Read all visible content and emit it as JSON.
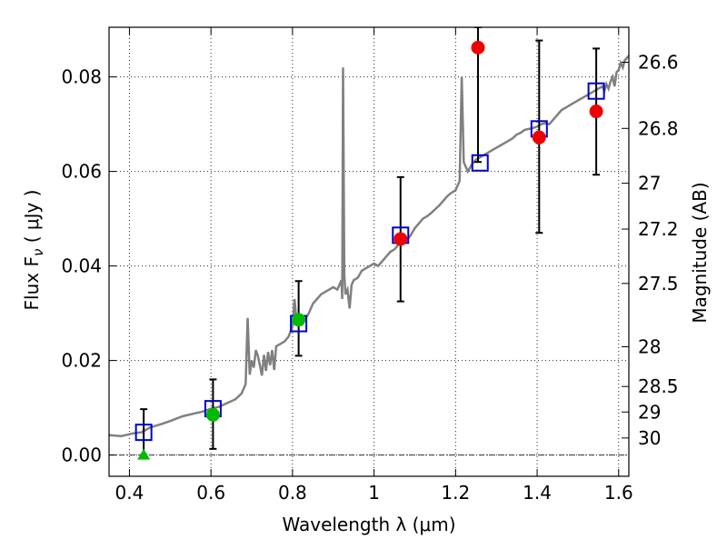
{
  "chart_data": {
    "type": "scatter",
    "xlabel": "Wavelength  λ (μm)",
    "ylabel": "Flux  F",
    "ylabel_sub": "ν",
    "ylabel_unit": "  ( μJy )",
    "y2label": "Magnitude (AB)",
    "xlim": [
      0.35,
      1.625
    ],
    "ylim": [
      -0.0045,
      0.0905
    ],
    "grid": true,
    "x_ticks": [
      0.4,
      0.6,
      0.8,
      1.0,
      1.2,
      1.4,
      1.6
    ],
    "x_tick_labels": [
      "0.4",
      "0.6",
      "0.8",
      "1",
      "1.2",
      "1.4",
      "1.6"
    ],
    "y_ticks": [
      0.0,
      0.02,
      0.04,
      0.06,
      0.08
    ],
    "y_tick_labels": [
      "0.00",
      "0.02",
      "0.04",
      "0.06",
      "0.08"
    ],
    "mag_ticks": [
      {
        "label": "26.6",
        "flux": 0.0831
      },
      {
        "label": "26.8",
        "flux": 0.0691
      },
      {
        "label": "27",
        "flux": 0.0575
      },
      {
        "label": "27.2",
        "flux": 0.0478
      },
      {
        "label": "27.5",
        "flux": 0.0363
      },
      {
        "label": "28",
        "flux": 0.0229
      },
      {
        "label": "28.5",
        "flux": 0.0145
      },
      {
        "label": "29",
        "flux": 0.0091
      },
      {
        "label": "30",
        "flux": 0.0036
      }
    ],
    "colors": {
      "model": "#808080",
      "model_photometry": "#0000cc",
      "detection_red": "#ee0000",
      "detection_green": "#00bb00",
      "errorbar": "#000000"
    },
    "series": [
      {
        "kind": "line",
        "points": [
          [
            0.35,
            0.0042
          ],
          [
            0.38,
            0.004
          ],
          [
            0.41,
            0.0046
          ],
          [
            0.43,
            0.0048
          ],
          [
            0.45,
            0.0058
          ],
          [
            0.48,
            0.0066
          ],
          [
            0.5,
            0.0072
          ],
          [
            0.53,
            0.0082
          ],
          [
            0.56,
            0.0088
          ],
          [
            0.58,
            0.0092
          ],
          [
            0.6,
            0.0098
          ],
          [
            0.62,
            0.0102
          ],
          [
            0.64,
            0.011
          ],
          [
            0.66,
            0.0118
          ],
          [
            0.675,
            0.013
          ],
          [
            0.685,
            0.015
          ],
          [
            0.69,
            0.029
          ],
          [
            0.695,
            0.017
          ],
          [
            0.7,
            0.02
          ],
          [
            0.705,
            0.0185
          ],
          [
            0.71,
            0.0222
          ],
          [
            0.715,
            0.021
          ],
          [
            0.72,
            0.019
          ],
          [
            0.725,
            0.0168
          ],
          [
            0.73,
            0.0212
          ],
          [
            0.735,
            0.0178
          ],
          [
            0.74,
            0.0218
          ],
          [
            0.745,
            0.019
          ],
          [
            0.75,
            0.0222
          ],
          [
            0.755,
            0.018
          ],
          [
            0.76,
            0.023
          ],
          [
            0.77,
            0.0235
          ],
          [
            0.78,
            0.024
          ],
          [
            0.79,
            0.025
          ],
          [
            0.8,
            0.0272
          ],
          [
            0.805,
            0.033
          ],
          [
            0.81,
            0.028
          ],
          [
            0.82,
            0.029
          ],
          [
            0.83,
            0.0285
          ],
          [
            0.84,
            0.03
          ],
          [
            0.85,
            0.032
          ],
          [
            0.86,
            0.033
          ],
          [
            0.87,
            0.034
          ],
          [
            0.88,
            0.0345
          ],
          [
            0.89,
            0.035
          ],
          [
            0.9,
            0.0355
          ],
          [
            0.91,
            0.035
          ],
          [
            0.915,
            0.036
          ],
          [
            0.92,
            0.037
          ],
          [
            0.922,
            0.033
          ],
          [
            0.924,
            0.082
          ],
          [
            0.927,
            0.038
          ],
          [
            0.93,
            0.034
          ],
          [
            0.935,
            0.035
          ],
          [
            0.94,
            0.031
          ],
          [
            0.945,
            0.036
          ],
          [
            0.95,
            0.037
          ],
          [
            0.96,
            0.0375
          ],
          [
            0.97,
            0.039
          ],
          [
            0.98,
            0.0395
          ],
          [
            0.99,
            0.04
          ],
          [
            1.0,
            0.0405
          ],
          [
            1.01,
            0.04
          ],
          [
            1.02,
            0.041
          ],
          [
            1.03,
            0.042
          ],
          [
            1.04,
            0.043
          ],
          [
            1.05,
            0.0435
          ],
          [
            1.06,
            0.0445
          ],
          [
            1.07,
            0.045
          ],
          [
            1.08,
            0.0455
          ],
          [
            1.09,
            0.0465
          ],
          [
            1.1,
            0.048
          ],
          [
            1.11,
            0.049
          ],
          [
            1.12,
            0.05
          ],
          [
            1.13,
            0.0505
          ],
          [
            1.14,
            0.0512
          ],
          [
            1.15,
            0.052
          ],
          [
            1.16,
            0.0528
          ],
          [
            1.17,
            0.0538
          ],
          [
            1.18,
            0.0548
          ],
          [
            1.19,
            0.0555
          ],
          [
            1.2,
            0.056
          ],
          [
            1.21,
            0.058
          ],
          [
            1.215,
            0.08
          ],
          [
            1.22,
            0.062
          ],
          [
            1.225,
            0.061
          ],
          [
            1.23,
            0.06
          ],
          [
            1.24,
            0.0615
          ],
          [
            1.25,
            0.0625
          ],
          [
            1.26,
            0.063
          ],
          [
            1.27,
            0.0635
          ],
          [
            1.28,
            0.064
          ],
          [
            1.29,
            0.0645
          ],
          [
            1.3,
            0.065
          ],
          [
            1.31,
            0.0655
          ],
          [
            1.32,
            0.066
          ],
          [
            1.33,
            0.0665
          ],
          [
            1.34,
            0.067
          ],
          [
            1.35,
            0.0678
          ],
          [
            1.36,
            0.0682
          ],
          [
            1.37,
            0.0688
          ],
          [
            1.38,
            0.069
          ],
          [
            1.39,
            0.0692
          ],
          [
            1.4,
            0.0695
          ],
          [
            1.41,
            0.07
          ],
          [
            1.42,
            0.0702
          ],
          [
            1.43,
            0.07
          ],
          [
            1.44,
            0.071
          ],
          [
            1.45,
            0.072
          ],
          [
            1.46,
            0.073
          ],
          [
            1.47,
            0.0735
          ],
          [
            1.48,
            0.074
          ],
          [
            1.49,
            0.0745
          ],
          [
            1.5,
            0.075
          ],
          [
            1.51,
            0.0755
          ],
          [
            1.52,
            0.076
          ],
          [
            1.53,
            0.0765
          ],
          [
            1.54,
            0.077
          ],
          [
            1.55,
            0.0775
          ],
          [
            1.56,
            0.078
          ],
          [
            1.565,
            0.077
          ],
          [
            1.57,
            0.0785
          ],
          [
            1.575,
            0.0775
          ],
          [
            1.58,
            0.079
          ],
          [
            1.585,
            0.08
          ],
          [
            1.59,
            0.078
          ],
          [
            1.595,
            0.081
          ],
          [
            1.6,
            0.0815
          ],
          [
            1.605,
            0.083
          ],
          [
            1.61,
            0.082
          ],
          [
            1.615,
            0.0835
          ],
          [
            1.62,
            0.084
          ],
          [
            1.625,
            0.0845
          ]
        ]
      },
      {
        "kind": "open-square",
        "x": [
          0.435,
          0.605,
          0.815,
          1.065,
          1.26,
          1.405,
          1.545
        ],
        "y": [
          0.0048,
          0.0098,
          0.0278,
          0.0465,
          0.0618,
          0.069,
          0.077
        ]
      },
      {
        "kind": "filled-circle-red",
        "x": [
          1.065,
          1.255,
          1.405,
          1.545
        ],
        "y": [
          0.0457,
          0.0862,
          0.0672,
          0.0727
        ]
      },
      {
        "kind": "filled-circle-green",
        "x": [
          0.605,
          0.815
        ],
        "y": [
          0.0085,
          0.0286
        ]
      },
      {
        "kind": "triangle-green",
        "x": [
          0.435
        ],
        "y": [
          0.0
        ]
      }
    ],
    "errorbars": [
      {
        "x": 0.435,
        "y": 0.0048,
        "low": 0.0,
        "high": 0.0097
      },
      {
        "x": 0.605,
        "y": 0.0085,
        "low": 0.0013,
        "high": 0.016
      },
      {
        "x": 0.815,
        "y": 0.0286,
        "low": 0.021,
        "high": 0.0368
      },
      {
        "x": 1.065,
        "y": 0.0457,
        "low": 0.0325,
        "high": 0.0588
      },
      {
        "x": 1.255,
        "y": 0.0862,
        "low": 0.062,
        "high": 0.0905
      },
      {
        "x": 1.405,
        "y": 0.0672,
        "low": 0.047,
        "high": 0.0877
      },
      {
        "x": 1.545,
        "y": 0.0727,
        "low": 0.0593,
        "high": 0.086
      }
    ]
  }
}
